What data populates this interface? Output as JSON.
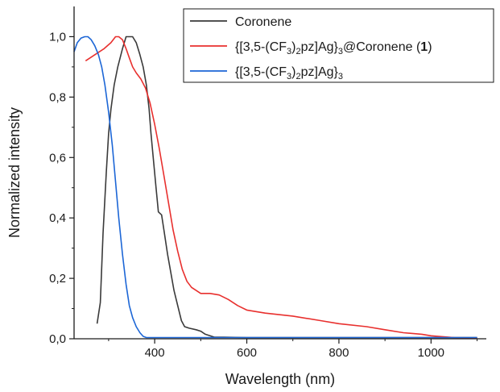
{
  "chart_data": {
    "type": "line",
    "xlabel": "Wavelength (nm)",
    "ylabel": "Normalized intensity",
    "xlim": [
      225,
      1120
    ],
    "ylim": [
      0,
      1.1
    ],
    "x_ticks": [
      {
        "value": 400,
        "label": "400"
      },
      {
        "value": 600,
        "label": "600"
      },
      {
        "value": 800,
        "label": "800"
      },
      {
        "value": 1000,
        "label": "1000"
      }
    ],
    "y_ticks": [
      {
        "value": 0.0,
        "label": "0,0"
      },
      {
        "value": 0.2,
        "label": "0,2"
      },
      {
        "value": 0.4,
        "label": "0,4"
      },
      {
        "value": 0.6,
        "label": "0,6"
      },
      {
        "value": 0.8,
        "label": "0,8"
      },
      {
        "value": 1.0,
        "label": "1,0"
      }
    ],
    "legend_position": "top-right",
    "series": [
      {
        "name": "Coronene",
        "legend_parts": [
          {
            "t": "Coronene",
            "s": "n"
          }
        ],
        "color": "#3a3a3a",
        "x": [
          275,
          282,
          288,
          295,
          300,
          305,
          312,
          320,
          330,
          338,
          345,
          352,
          360,
          368,
          375,
          382,
          388,
          392,
          398,
          403,
          408,
          415,
          420,
          428,
          435,
          442,
          450,
          458,
          465,
          475,
          490,
          500,
          510,
          520,
          530,
          550,
          600,
          700,
          800,
          900,
          1000,
          1100
        ],
        "y": [
          0.05,
          0.12,
          0.35,
          0.55,
          0.68,
          0.76,
          0.84,
          0.9,
          0.96,
          1.0,
          1.0,
          1.0,
          0.98,
          0.94,
          0.9,
          0.84,
          0.76,
          0.68,
          0.58,
          0.5,
          0.42,
          0.41,
          0.36,
          0.28,
          0.22,
          0.16,
          0.11,
          0.06,
          0.04,
          0.035,
          0.03,
          0.025,
          0.015,
          0.01,
          0.005,
          0.005,
          0.004,
          0.004,
          0.004,
          0.004,
          0.004,
          0.004
        ]
      },
      {
        "name": "{[3,5-(CF3)2pz]Ag}3@Coronene (1)",
        "legend_parts": [
          {
            "t": "{[3,5-(CF",
            "s": "n"
          },
          {
            "t": "3",
            "s": "sub"
          },
          {
            "t": ")",
            "s": "n"
          },
          {
            "t": "2",
            "s": "sub"
          },
          {
            "t": "pz]Ag}",
            "s": "n"
          },
          {
            "t": "3",
            "s": "sub"
          },
          {
            "t": "@Coronene (",
            "s": "n"
          },
          {
            "t": "1",
            "s": "b"
          },
          {
            "t": ")",
            "s": "n"
          }
        ],
        "color": "#e8302e",
        "x": [
          250,
          270,
          290,
          305,
          315,
          322,
          330,
          338,
          345,
          352,
          360,
          370,
          380,
          390,
          400,
          410,
          420,
          430,
          440,
          450,
          460,
          470,
          480,
          490,
          500,
          520,
          540,
          560,
          580,
          600,
          640,
          700,
          760,
          800,
          860,
          900,
          940,
          980,
          1000,
          1050,
          1100
        ],
        "y": [
          0.92,
          0.94,
          0.96,
          0.98,
          1.0,
          1.0,
          0.99,
          0.96,
          0.93,
          0.9,
          0.88,
          0.86,
          0.83,
          0.78,
          0.71,
          0.63,
          0.54,
          0.45,
          0.36,
          0.29,
          0.23,
          0.19,
          0.17,
          0.16,
          0.15,
          0.15,
          0.145,
          0.13,
          0.11,
          0.095,
          0.085,
          0.075,
          0.06,
          0.05,
          0.04,
          0.03,
          0.02,
          0.015,
          0.01,
          0.004,
          0.003
        ]
      },
      {
        "name": "{[3,5-(CF3)2pz]Ag}3",
        "legend_parts": [
          {
            "t": "{[3,5-(CF",
            "s": "n"
          },
          {
            "t": "3",
            "s": "sub"
          },
          {
            "t": ")",
            "s": "n"
          },
          {
            "t": "2",
            "s": "sub"
          },
          {
            "t": "pz]Ag}",
            "s": "n"
          },
          {
            "t": "3",
            "s": "sub"
          }
        ],
        "color": "#1c66d6",
        "x": [
          225,
          232,
          240,
          248,
          255,
          262,
          270,
          278,
          285,
          292,
          300,
          308,
          315,
          322,
          330,
          338,
          345,
          352,
          360,
          368,
          375,
          382,
          390,
          400,
          420,
          450,
          500,
          600,
          700,
          800,
          900,
          1000,
          1100
        ],
        "y": [
          0.95,
          0.98,
          0.995,
          1.0,
          1.0,
          0.99,
          0.97,
          0.94,
          0.9,
          0.84,
          0.75,
          0.64,
          0.52,
          0.4,
          0.28,
          0.18,
          0.11,
          0.07,
          0.04,
          0.02,
          0.008,
          0.004,
          0.004,
          0.004,
          0.004,
          0.004,
          0.004,
          0.004,
          0.004,
          0.004,
          0.004,
          0.004,
          0.004
        ]
      }
    ]
  }
}
